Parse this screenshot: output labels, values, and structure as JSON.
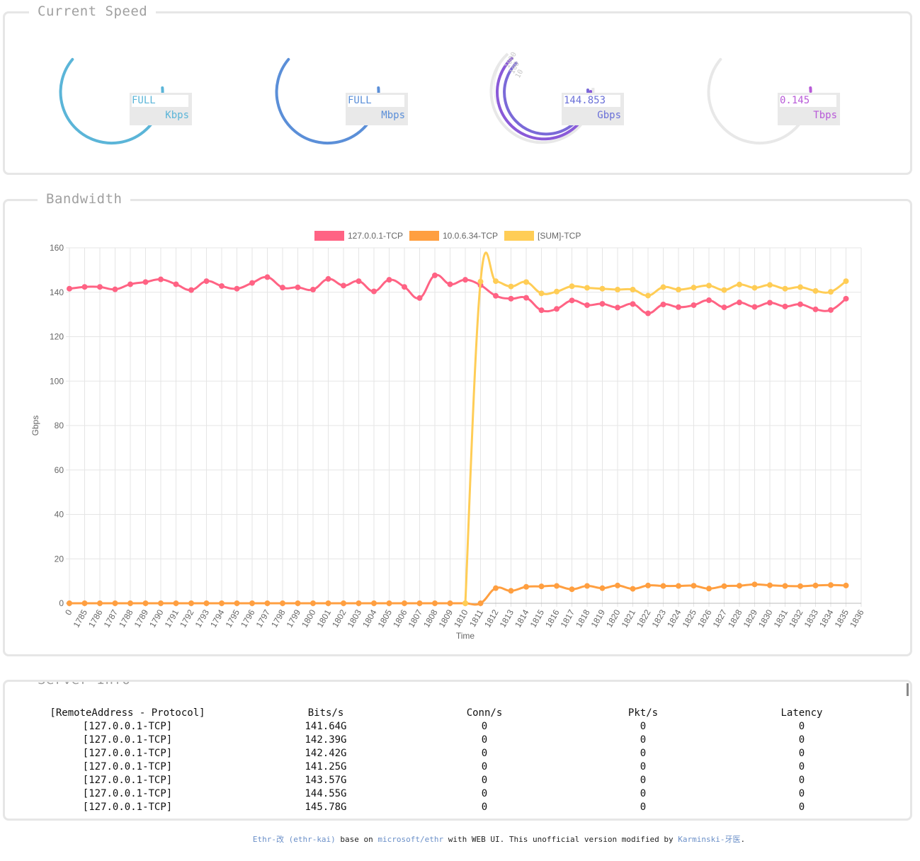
{
  "speed": {
    "title": "Current Speed",
    "gauges": [
      {
        "value": "FULL",
        "unit": "Kbps",
        "color": "#5bb5d8"
      },
      {
        "value": "FULL",
        "unit": "Mbps",
        "color": "#5b8fd8"
      },
      {
        "value": "144.853",
        "unit": "Gbps",
        "color": "#7b6ad8",
        "ring_labels": [
          "1000",
          "100",
          "10"
        ]
      },
      {
        "value": "0.145",
        "unit": "Tbps",
        "color": "#b85ad8"
      }
    ]
  },
  "bandwidth": {
    "title": "Bandwidth"
  },
  "chart_data": {
    "type": "line",
    "xlabel": "Time",
    "ylabel": "Gbps",
    "ylim": [
      0,
      160
    ],
    "yticks": [
      0,
      20,
      40,
      60,
      80,
      100,
      120,
      140,
      160
    ],
    "categories": [
      "0",
      "1785",
      "1786",
      "1787",
      "1788",
      "1789",
      "1790",
      "1791",
      "1792",
      "1793",
      "1794",
      "1795",
      "1796",
      "1797",
      "1798",
      "1799",
      "1800",
      "1801",
      "1802",
      "1803",
      "1804",
      "1805",
      "1806",
      "1807",
      "1808",
      "1809",
      "1810",
      "1811",
      "1812",
      "1813",
      "1814",
      "1815",
      "1816",
      "1817",
      "1818",
      "1819",
      "1820",
      "1821",
      "1822",
      "1823",
      "1824",
      "1825",
      "1826",
      "1827",
      "1828",
      "1829",
      "1830",
      "1831",
      "1832",
      "1833",
      "1834",
      "1835",
      "1836"
    ],
    "grid": true,
    "legend_position": "top",
    "series": [
      {
        "name": "127.0.0.1-TCP",
        "color": "#ff6384",
        "values": [
          141.6,
          142.4,
          142.4,
          141.3,
          143.6,
          144.6,
          145.8,
          143.6,
          141.0,
          145.0,
          142.8,
          141.6,
          144.2,
          146.8,
          142.1,
          142.2,
          141.2,
          146.0,
          143.0,
          145.0,
          140.4,
          145.6,
          142.4,
          137.4,
          147.6,
          143.6,
          145.6,
          143.2,
          138.4,
          137.1,
          137.5,
          131.9,
          132.5,
          136.3,
          134.2,
          134.8,
          133.1,
          134.7,
          130.5,
          134.5,
          133.3,
          134.2,
          136.4,
          133.2,
          135.4,
          133.4,
          135.3,
          133.6,
          134.6,
          132.3,
          132.0,
          137.1,
          null
        ]
      },
      {
        "name": "10.0.6.34-TCP",
        "color": "#ff9f40",
        "values": [
          0,
          0,
          0,
          0,
          0,
          0,
          0,
          0,
          0,
          0,
          0,
          0,
          0,
          0,
          0,
          0,
          0,
          0,
          0,
          0,
          0,
          0,
          0,
          0,
          0,
          0,
          0,
          0,
          6.8,
          5.6,
          7.4,
          7.6,
          7.8,
          6.3,
          7.8,
          6.8,
          8.0,
          6.5,
          8.0,
          7.8,
          7.8,
          7.9,
          6.6,
          7.7,
          7.9,
          8.5,
          8.1,
          7.8,
          7.7,
          8.0,
          8.2,
          8.0,
          null
        ]
      },
      {
        "name": "[SUM]-TCP",
        "color": "#ffcd56",
        "values": [
          null,
          null,
          null,
          null,
          null,
          null,
          null,
          null,
          null,
          null,
          null,
          null,
          null,
          null,
          null,
          null,
          null,
          null,
          null,
          null,
          null,
          null,
          null,
          null,
          null,
          null,
          0,
          144.8,
          145.0,
          142.6,
          144.6,
          139.5,
          140.3,
          142.7,
          142.0,
          141.6,
          141.2,
          141.2,
          138.5,
          142.3,
          141.2,
          142.1,
          143.0,
          141.0,
          143.5,
          142.0,
          143.3,
          141.6,
          142.3,
          140.6,
          140.2,
          145.0,
          null
        ]
      }
    ]
  },
  "server_info": {
    "title": "Server Info",
    "headers": [
      "[RemoteAddress - Protocol]",
      "Bits/s",
      "Conn/s",
      "Pkt/s",
      "Latency"
    ],
    "rows": [
      [
        "[127.0.0.1-TCP]",
        "141.64G",
        "0",
        "0",
        "0"
      ],
      [
        "[127.0.0.1-TCP]",
        "142.39G",
        "0",
        "0",
        "0"
      ],
      [
        "[127.0.0.1-TCP]",
        "142.42G",
        "0",
        "0",
        "0"
      ],
      [
        "[127.0.0.1-TCP]",
        "141.25G",
        "0",
        "0",
        "0"
      ],
      [
        "[127.0.0.1-TCP]",
        "143.57G",
        "0",
        "0",
        "0"
      ],
      [
        "[127.0.0.1-TCP]",
        "144.55G",
        "0",
        "0",
        "0"
      ],
      [
        "[127.0.0.1-TCP]",
        "145.78G",
        "0",
        "0",
        "0"
      ]
    ]
  },
  "footer": {
    "link1": "Ethr-改 (ethr-kai)",
    "text1": " base on ",
    "link2": "microsoft/ethr",
    "text2": " with WEB UI. This unofficial version modified by ",
    "link3": "Karminski-牙医",
    "text3": "."
  }
}
